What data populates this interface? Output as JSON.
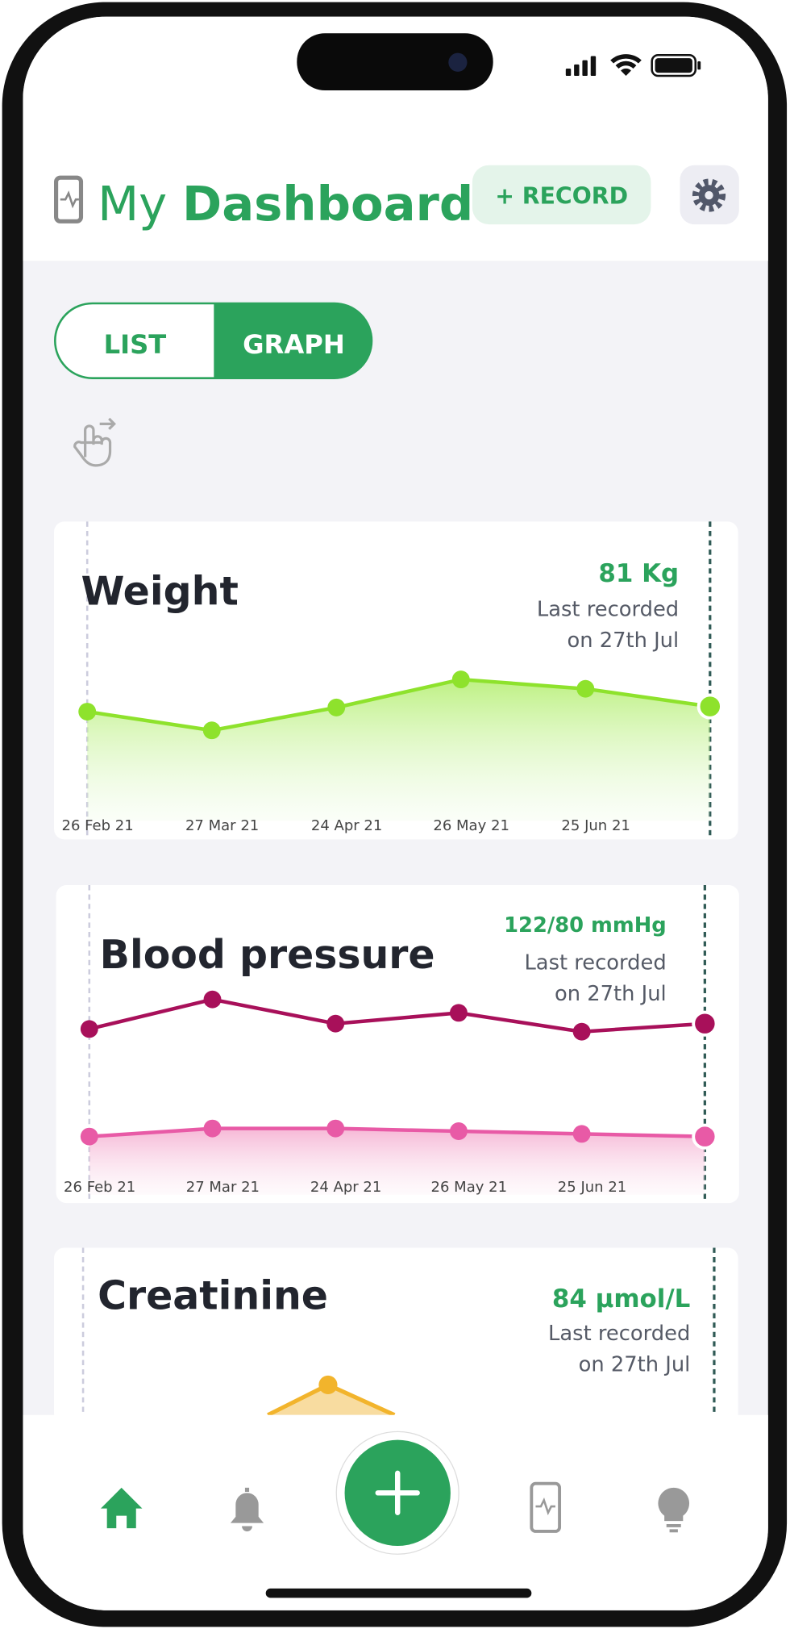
{
  "header": {
    "title_prefix": "My",
    "title_bold": "Dashboard",
    "record_button": "+ RECORD"
  },
  "toggle": {
    "options": [
      "LIST",
      "GRAPH"
    ],
    "selected": 1
  },
  "cards": [
    {
      "title": "Weight",
      "latest": "81 Kg",
      "recorded": "Last recorded",
      "recorded_on": "on 27th Jul",
      "chart": {
        "type": "area",
        "categories": [
          "26 Feb 21",
          "27 Mar 21",
          "24 Apr 21",
          "26 May 21",
          "25 Jun 21",
          null
        ],
        "series": [
          {
            "color": "#8ee22c",
            "values": [
              80.5,
              78.7,
              80.9,
              83.6,
              82.7,
              81
            ]
          }
        ]
      }
    },
    {
      "title": "Blood pressure",
      "latest": "122/80 mmHg",
      "recorded": "Last recorded",
      "recorded_on": "on 27th Jul",
      "chart": {
        "type": "line",
        "categories": [
          "26 Feb 21",
          "27 Mar 21",
          "24 Apr 21",
          "26 May 21",
          "25 Jun 21",
          null
        ],
        "series": [
          {
            "color": "#a8105a",
            "values": [
              120,
              131,
              122,
              126,
              119,
              122
            ]
          },
          {
            "color": "#e85aa6",
            "values": [
              80,
              83,
              83,
              82,
              81,
              80
            ],
            "area": true
          }
        ]
      }
    },
    {
      "title": "Creatinine",
      "latest": "84 µmol/L",
      "recorded": "Last recorded",
      "recorded_on": "on 27th Jul"
    }
  ]
}
